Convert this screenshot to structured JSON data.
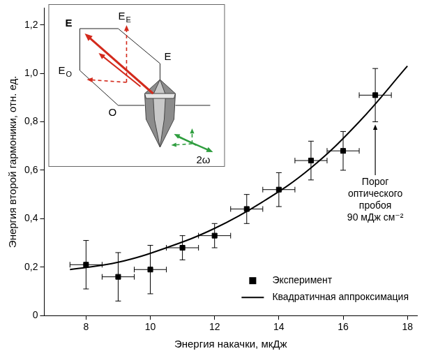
{
  "chart_data": {
    "type": "scatter",
    "x_label": "Энергия накачки, мкДж",
    "y_label": "Энергия второй гармоники, отн. ед.",
    "xlim": [
      6.7,
      18.3
    ],
    "ylim": [
      0,
      1.27
    ],
    "xticks": [
      8,
      10,
      12,
      14,
      16,
      18
    ],
    "yticks": [
      0,
      {
        "value": 0.2,
        "label": "0,2"
      },
      {
        "value": 0.4,
        "label": "0,4"
      },
      {
        "value": 0.6,
        "label": "0,6"
      },
      {
        "value": 0.8,
        "label": "0,8"
      },
      {
        "value": 1.0,
        "label": "1,0"
      },
      {
        "value": 1.2,
        "label": "1,2"
      }
    ],
    "grid": false,
    "legend": "lower right",
    "series": [
      {
        "name": "Эксперимент",
        "type": "scatter",
        "marker": "square",
        "color": "#000000",
        "x": [
          8,
          9,
          10,
          11,
          12,
          13,
          14,
          15,
          16,
          17
        ],
        "values": [
          0.21,
          0.16,
          0.19,
          0.28,
          0.33,
          0.44,
          0.52,
          0.64,
          0.68,
          0.91
        ],
        "x_err": [
          0.5,
          0.5,
          0.5,
          0.5,
          0.5,
          0.5,
          0.5,
          0.5,
          0.5,
          0.5
        ],
        "y_err": [
          0.1,
          0.1,
          0.1,
          0.05,
          0.05,
          0.06,
          0.07,
          0.08,
          0.08,
          0.11
        ]
      },
      {
        "name": "Квадратичная аппроксимация",
        "type": "line",
        "line_style": "solid",
        "color": "#000000",
        "x": [
          7.5,
          9,
          10.5,
          12,
          13.5,
          15,
          16.5,
          18
        ],
        "values": [
          0.19,
          0.22,
          0.28,
          0.36,
          0.47,
          0.61,
          0.8,
          1.03
        ]
      }
    ],
    "annotations": [
      {
        "text": [
          "Порог",
          "оптического",
          "пробоя",
          "90 мДж см⁻²"
        ]
      }
    ],
    "inset": {
      "labels": [
        {
          "text": "E"
        },
        {
          "text": "E",
          "subscript": "E"
        },
        {
          "text": "E",
          "subscript": "O"
        },
        {
          "text": "O"
        },
        {
          "text": "E"
        },
        {
          "text": "2ω"
        }
      ]
    }
  }
}
